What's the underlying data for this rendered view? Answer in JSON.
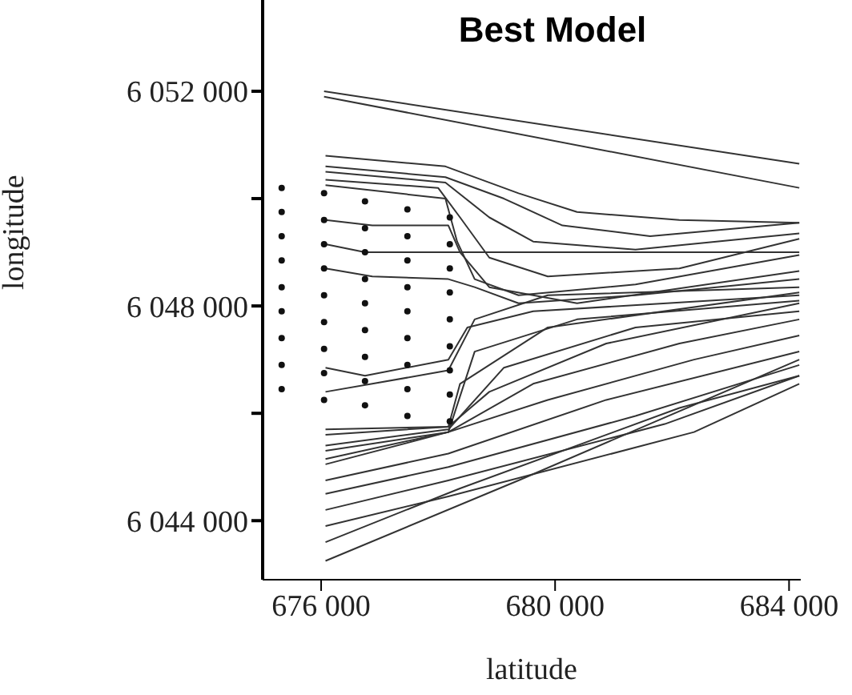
{
  "chart_data": {
    "type": "line",
    "title": "Best Model",
    "xlabel": "latitude",
    "ylabel": "longitude",
    "xlim": [
      675000,
      684200
    ],
    "ylim": [
      6042900,
      6053700
    ],
    "xticks": [
      {
        "value": 676000,
        "label": "676 000"
      },
      {
        "value": 680000,
        "label": "680 000"
      },
      {
        "value": 684000,
        "label": "684 000"
      }
    ],
    "yticks": [
      {
        "value": 6044000,
        "label": "6 044 000"
      },
      {
        "value": 6046000,
        "label": null
      },
      {
        "value": 6048000,
        "label": "6 048 000"
      },
      {
        "value": 6050000,
        "label": null
      },
      {
        "value": 6052000,
        "label": "6 052 000"
      }
    ],
    "series": [
      {
        "color": "#333333",
        "x": [
          676050,
          684175
        ],
        "values": [
          6052000,
          6050650
        ]
      },
      {
        "color": "#333333",
        "x": [
          676050,
          684175
        ],
        "values": [
          6051900,
          6050200
        ]
      },
      {
        "color": "#333333",
        "x": [
          676075,
          678125,
          679375,
          680375,
          682125,
          684175
        ],
        "values": [
          6050800,
          6050600,
          6050100,
          6049750,
          6049600,
          6049550
        ]
      },
      {
        "color": "#333333",
        "x": [
          676075,
          678125,
          679125,
          680125,
          681625,
          684175
        ],
        "values": [
          6050600,
          6050400,
          6050000,
          6049500,
          6049300,
          6049550
        ]
      },
      {
        "color": "#333333",
        "x": [
          676075,
          678125,
          678875,
          679625,
          681375,
          684175
        ],
        "values": [
          6050500,
          6050300,
          6049650,
          6049200,
          6049050,
          6049350
        ]
      },
      {
        "color": "#333333",
        "x": [
          676075,
          678000,
          678375,
          678875,
          679875,
          682125,
          684175
        ],
        "values": [
          6050350,
          6050200,
          6049650,
          6048900,
          6048550,
          6048700,
          6049250
        ]
      },
      {
        "color": "#333333",
        "x": [
          676075,
          678125,
          678325,
          678625,
          679375,
          681375,
          684175
        ],
        "values": [
          6050250,
          6050000,
          6049200,
          6048500,
          6048200,
          6048400,
          6048950
        ]
      },
      {
        "color": "#333333",
        "x": [
          676075,
          676875,
          678175,
          678375,
          678875,
          680375,
          684175
        ],
        "values": [
          6049600,
          6049500,
          6049500,
          6049000,
          6048350,
          6048050,
          6048650
        ]
      },
      {
        "color": "#333333",
        "x": [
          676075,
          676750,
          684175
        ],
        "values": [
          6049150,
          6049000,
          6049000
        ]
      },
      {
        "color": "#333333",
        "x": [
          676075,
          676875,
          678175,
          678625,
          679375,
          681375,
          684175
        ],
        "values": [
          6048700,
          6048550,
          6048500,
          6048350,
          6048050,
          6048200,
          6048500
        ]
      },
      {
        "color": "#333333",
        "x": [
          676075,
          676875,
          678175,
          678625,
          679875,
          684175
        ],
        "values": [
          6046400,
          6046550,
          6046800,
          6047750,
          6048200,
          6048350
        ]
      },
      {
        "color": "#333333",
        "x": [
          676075,
          676750,
          678175,
          678500,
          679625,
          684175
        ],
        "values": [
          6046850,
          6046700,
          6047000,
          6047600,
          6047900,
          6048200
        ]
      },
      {
        "color": "#333333",
        "x": [
          676075,
          678175,
          678875,
          680875,
          684175
        ],
        "values": [
          6045600,
          6045750,
          6046400,
          6047300,
          6048050
        ]
      },
      {
        "color": "#333333",
        "x": [
          676075,
          678175,
          679125,
          681375,
          684175
        ],
        "values": [
          6045400,
          6045700,
          6046850,
          6047600,
          6047900
        ]
      },
      {
        "color": "#333333",
        "x": [
          676075,
          678175,
          678625,
          680375,
          684175
        ],
        "values": [
          6045300,
          6045650,
          6047150,
          6047750,
          6048100
        ]
      },
      {
        "color": "#333333",
        "x": [
          676075,
          678175,
          679625,
          682125,
          684175
        ],
        "values": [
          6045150,
          6045650,
          6046550,
          6047300,
          6047750
        ]
      },
      {
        "color": "#333333",
        "x": [
          676075,
          678175,
          679875,
          682375,
          684175
        ],
        "values": [
          6045050,
          6045650,
          6046250,
          6047000,
          6047450
        ]
      },
      {
        "color": "#333333",
        "x": [
          676075,
          678175,
          678375,
          679875,
          684175
        ],
        "values": [
          6045700,
          6045750,
          6046550,
          6047600,
          6048250
        ]
      },
      {
        "color": "#333333",
        "x": [
          676075,
          678175,
          680875,
          684175
        ],
        "values": [
          6044750,
          6045250,
          6046250,
          6047150
        ]
      },
      {
        "color": "#333333",
        "x": [
          676075,
          678175,
          681375,
          684175
        ],
        "values": [
          6044500,
          6045000,
          6045950,
          6046900
        ]
      },
      {
        "color": "#333333",
        "x": [
          676075,
          678175,
          681875,
          684175
        ],
        "values": [
          6044200,
          6044750,
          6045800,
          6046700
        ]
      },
      {
        "color": "#333333",
        "x": [
          676075,
          678175,
          682375,
          684175
        ],
        "values": [
          6043900,
          6044450,
          6045650,
          6046550
        ]
      },
      {
        "color": "#333333",
        "x": [
          676075,
          678375,
          682125,
          684175
        ],
        "values": [
          6043600,
          6044600,
          6046100,
          6046700
        ]
      },
      {
        "color": "#333333",
        "x": [
          676075,
          679375,
          684175
        ],
        "values": [
          6043250,
          6044750,
          6047000
        ]
      },
      {
        "type": "scatter",
        "color": "#111111",
        "x": [
          675325,
          675325,
          675325,
          675325,
          675325,
          675325,
          675325,
          675325,
          675325,
          676050,
          676050,
          676050,
          676050,
          676050,
          676050,
          676050,
          676050,
          676050,
          676750,
          676750,
          676750,
          676750,
          676750,
          676750,
          676750,
          676750,
          676750,
          677475,
          677475,
          677475,
          677475,
          677475,
          677475,
          677475,
          677475,
          677475,
          678200,
          678200,
          678200,
          678200,
          678200,
          678200,
          678200,
          678200,
          678200
        ],
        "values": [
          6050200,
          6049750,
          6049300,
          6048850,
          6048350,
          6047900,
          6047400,
          6046900,
          6046450,
          6050100,
          6049600,
          6049150,
          6048700,
          6048200,
          6047700,
          6047200,
          6046750,
          6046250,
          6049950,
          6049450,
          6049000,
          6048500,
          6048050,
          6047550,
          6047050,
          6046600,
          6046150,
          6049800,
          6049300,
          6048850,
          6048350,
          6047900,
          6047400,
          6046900,
          6046450,
          6045950,
          6049650,
          6049150,
          6048700,
          6048250,
          6047750,
          6047250,
          6046800,
          6046350,
          6045850
        ]
      }
    ]
  }
}
